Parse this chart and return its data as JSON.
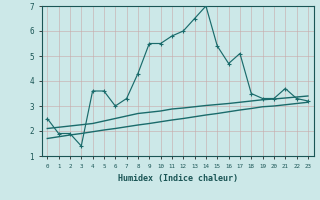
{
  "xlabel": "Humidex (Indice chaleur)",
  "x": [
    0,
    1,
    2,
    3,
    4,
    5,
    6,
    7,
    8,
    9,
    10,
    11,
    12,
    13,
    14,
    15,
    16,
    17,
    18,
    19,
    20,
    21,
    22,
    23
  ],
  "y_main": [
    2.5,
    1.9,
    1.9,
    1.4,
    3.6,
    3.6,
    3.0,
    3.3,
    4.3,
    5.5,
    5.5,
    5.8,
    6.0,
    6.5,
    7.0,
    5.4,
    4.7,
    5.1,
    3.5,
    3.3,
    3.3,
    3.7,
    3.3,
    3.2
  ],
  "y_reg1": [
    2.1,
    2.15,
    2.2,
    2.25,
    2.3,
    2.4,
    2.5,
    2.6,
    2.7,
    2.75,
    2.8,
    2.88,
    2.92,
    2.97,
    3.02,
    3.06,
    3.1,
    3.15,
    3.2,
    3.25,
    3.28,
    3.32,
    3.36,
    3.4
  ],
  "y_reg2": [
    1.7,
    1.77,
    1.84,
    1.9,
    1.97,
    2.04,
    2.1,
    2.17,
    2.24,
    2.3,
    2.37,
    2.44,
    2.5,
    2.57,
    2.64,
    2.7,
    2.77,
    2.84,
    2.9,
    2.97,
    3.0,
    3.05,
    3.1,
    3.15
  ],
  "line_color": "#1a6b6b",
  "bg_color": "#cce8e8",
  "grid_color": "#b8d4d4",
  "ylim": [
    1,
    7
  ],
  "xlim": [
    -0.5,
    23.5
  ],
  "yticks": [
    1,
    2,
    3,
    4,
    5,
    6,
    7
  ]
}
